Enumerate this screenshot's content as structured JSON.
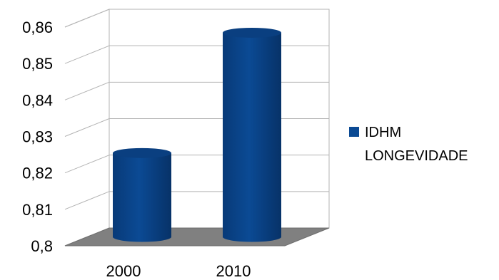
{
  "chart_data": {
    "type": "bar",
    "style": "3d-cylinder",
    "categories": [
      "2000",
      "2010"
    ],
    "series": [
      {
        "name": "IDHM LONGEVIDADE",
        "values": [
          0.823,
          0.856
        ],
        "color": "#0b4a94"
      }
    ],
    "ylim": [
      0.8,
      0.86
    ],
    "yticks": [
      "0,8",
      "0,81",
      "0,82",
      "0,83",
      "0,84",
      "0,85",
      "0,86"
    ],
    "grid": true,
    "legend": "right",
    "legend_lines": [
      "IDHM",
      "LONGEVIDADE"
    ],
    "floor_color": "#808080"
  }
}
